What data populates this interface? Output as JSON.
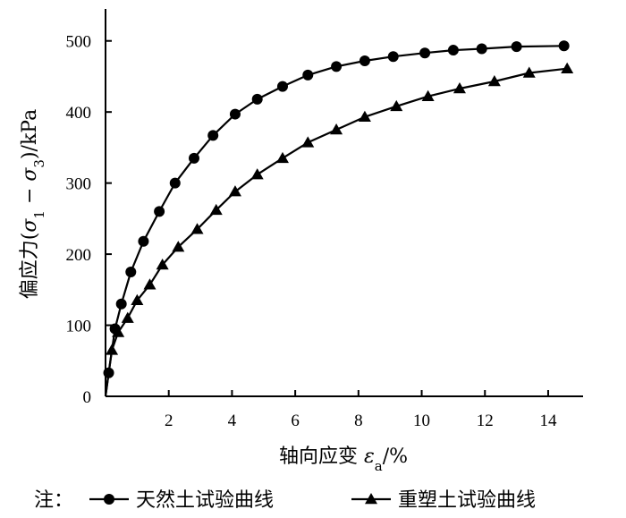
{
  "chart_data": {
    "type": "line",
    "xlabel": "轴向应变 εa/%",
    "xlabel_parts": {
      "main": "轴向应变 ",
      "symbol": "ε",
      "sub": "a",
      "unit": "/%"
    },
    "ylabel": "偏应力(σ1 − σ3)/kPa",
    "ylabel_parts": {
      "main": "偏应力(",
      "s1": "σ",
      "sub1": "1",
      "minus": " − ",
      "s3": "σ",
      "sub3": "3",
      "unit": ")/kPa"
    },
    "xlim": [
      0,
      15.5
    ],
    "ylim": [
      0,
      550
    ],
    "x_ticks": [
      2,
      4,
      6,
      8,
      10,
      12,
      14
    ],
    "y_ticks": [
      0,
      100,
      200,
      300,
      400,
      500
    ],
    "grid": false,
    "legend_prefix": "注：",
    "series": [
      {
        "name": "天然土试验曲线",
        "marker": "circle",
        "x": [
          0.1,
          0.3,
          0.5,
          0.8,
          1.2,
          1.7,
          2.2,
          2.8,
          3.4,
          4.1,
          4.8,
          5.6,
          6.4,
          7.3,
          8.2,
          9.1,
          10.1,
          11.0,
          11.9,
          13.0,
          14.5
        ],
        "y": [
          33,
          95,
          130,
          175,
          218,
          260,
          300,
          335,
          367,
          397,
          418,
          436,
          452,
          464,
          472,
          478,
          483,
          487,
          489,
          492,
          493
        ]
      },
      {
        "name": "重塑土试验曲线",
        "marker": "triangle",
        "x": [
          0.2,
          0.4,
          0.7,
          1.0,
          1.4,
          1.8,
          2.3,
          2.9,
          3.5,
          4.1,
          4.8,
          5.6,
          6.4,
          7.3,
          8.2,
          9.2,
          10.2,
          11.2,
          12.3,
          13.4,
          14.6
        ],
        "y": [
          65,
          90,
          110,
          135,
          157,
          185,
          210,
          235,
          262,
          288,
          312,
          335,
          357,
          375,
          393,
          408,
          422,
          433,
          443,
          455,
          461
        ]
      }
    ]
  }
}
